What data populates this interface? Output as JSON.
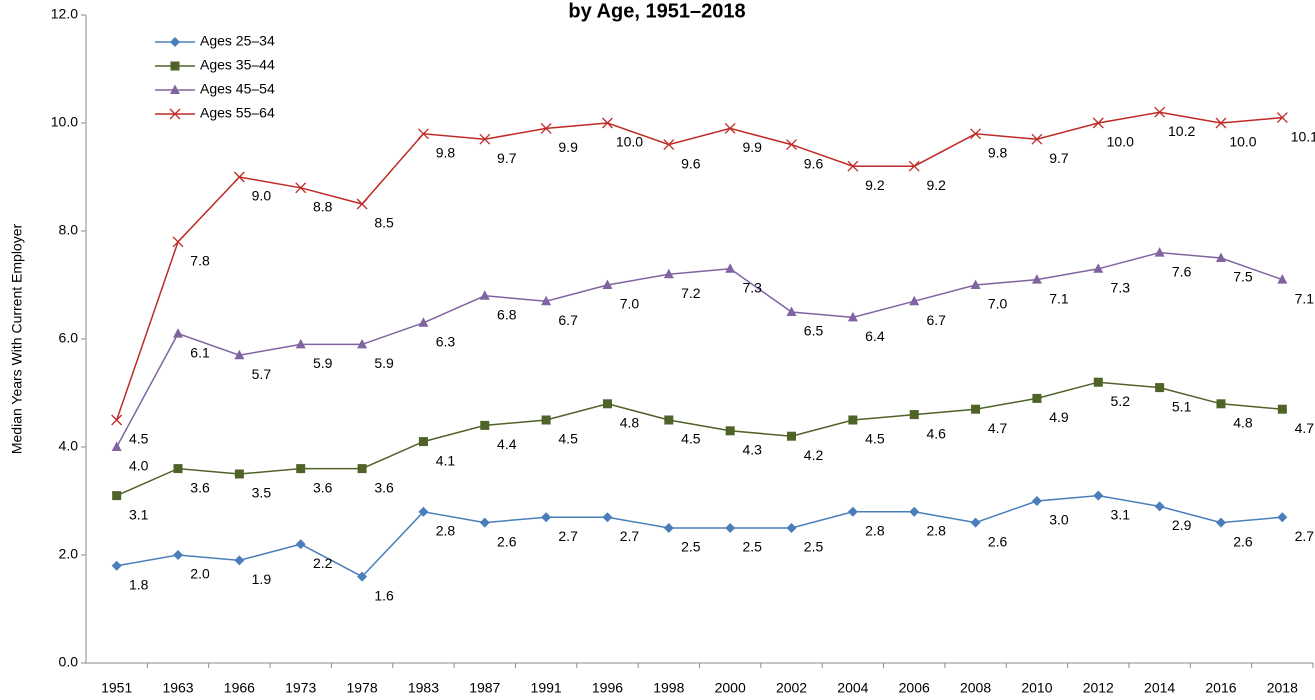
{
  "chart_data": {
    "type": "line",
    "title": "by Age, 1951–2018",
    "y_label": "Median Years With Current Employer",
    "categories": [
      "1951",
      "1963",
      "1966",
      "1973",
      "1978",
      "1983",
      "1987",
      "1991",
      "1996",
      "1998",
      "2000",
      "2002",
      "2004",
      "2006",
      "2008",
      "2010",
      "2012",
      "2014",
      "2016",
      "2018"
    ],
    "series": [
      {
        "name": "Ages 25–34",
        "color": "#4a7ebb",
        "marker": "diamond",
        "values": [
          1.8,
          2.0,
          1.9,
          2.2,
          1.6,
          2.8,
          2.6,
          2.7,
          2.7,
          2.5,
          2.5,
          2.5,
          2.8,
          2.8,
          2.6,
          3.0,
          3.1,
          2.9,
          2.6,
          2.7
        ],
        "value_labels": [
          "1.8",
          "2.0",
          "1.9",
          "2.2",
          "1.6",
          "2.8",
          "2.6",
          "2.7",
          "2.7",
          "2.5",
          "2.5",
          "2.5",
          "2.8",
          "2.8",
          "2.6",
          "3.0",
          "3.1",
          "2.9",
          "2.6",
          "2.7"
        ]
      },
      {
        "name": "Ages 35–44",
        "color": "#4f6228",
        "marker": "square",
        "values": [
          3.1,
          3.6,
          3.5,
          3.6,
          3.6,
          4.1,
          4.4,
          4.5,
          4.8,
          4.5,
          4.3,
          4.2,
          4.5,
          4.6,
          4.7,
          4.9,
          5.2,
          5.1,
          4.8,
          4.7
        ],
        "value_labels": [
          "3.1",
          "3.6",
          "3.5",
          "3.6",
          "3.6",
          "4.1",
          "4.4",
          "4.5",
          "4.8",
          "4.5",
          "4.3",
          "4.2",
          "4.5",
          "4.6",
          "4.7",
          "4.9",
          "5.2",
          "5.1",
          "4.8",
          "4.7"
        ]
      },
      {
        "name": "Ages 45–54",
        "color": "#8064a2",
        "marker": "triangle",
        "values": [
          4.0,
          6.1,
          5.7,
          5.9,
          5.9,
          6.3,
          6.8,
          6.7,
          7.0,
          7.2,
          7.3,
          6.5,
          6.4,
          6.7,
          7.0,
          7.1,
          7.3,
          7.6,
          7.5,
          7.1
        ],
        "value_labels": [
          "4.0",
          "6.1",
          "5.7",
          "5.9",
          "5.9",
          "6.3",
          "6.8",
          "6.7",
          "7.0",
          "7.2",
          "7.3",
          "6.5",
          "6.4",
          "6.7",
          "7.0",
          "7.1",
          "7.3",
          "7.6",
          "7.5",
          "7.1"
        ]
      },
      {
        "name": "Ages 55–64",
        "color": "#be2a26",
        "marker": "x",
        "values": [
          4.5,
          7.8,
          9.0,
          8.8,
          8.5,
          9.8,
          9.7,
          9.9,
          10.0,
          9.6,
          9.9,
          9.6,
          9.2,
          9.2,
          9.8,
          9.7,
          10.0,
          10.2,
          10.0,
          10.1
        ],
        "value_labels": [
          "4.5",
          "7.8",
          "9.0",
          "8.8",
          "8.5",
          "9.8",
          "9.7",
          "9.9",
          "10.0",
          "9.6",
          "9.9",
          "9.6",
          "9.2",
          "9.2",
          "9.8",
          "9.7",
          "10.0",
          "10.2",
          "10.0",
          "10.1"
        ]
      }
    ],
    "ylim": [
      0,
      12
    ],
    "yticks": [
      {
        "value": 0,
        "label": "0.0"
      },
      {
        "value": 2,
        "label": "2.0"
      },
      {
        "value": 4,
        "label": "4.0"
      },
      {
        "value": 6,
        "label": "6.0"
      },
      {
        "value": 8,
        "label": "8.0"
      },
      {
        "value": 10,
        "label": "10.0"
      },
      {
        "value": 12,
        "label": "12.0"
      }
    ],
    "grid": false,
    "legend": "upper left"
  }
}
